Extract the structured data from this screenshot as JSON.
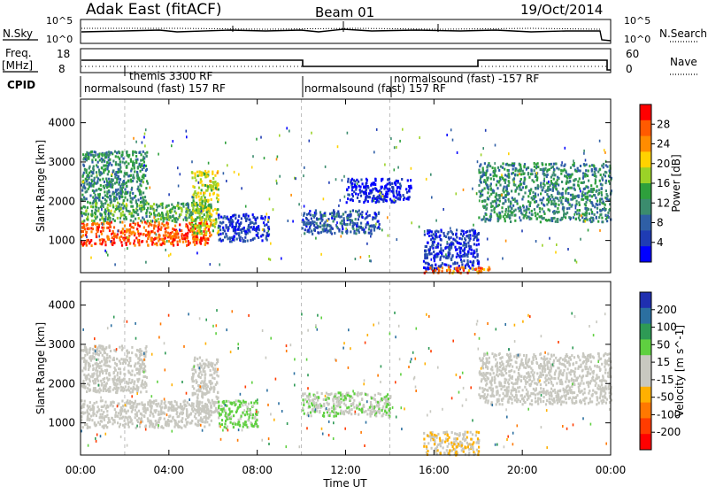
{
  "header": {
    "station": "Adak East (fitACF)",
    "beam": "Beam 01",
    "date": "19/Oct/2014"
  },
  "status_panels": {
    "nsky_label": "N.Sky",
    "nsearch_label": "N.Search",
    "freq_label_1": "Freq.",
    "freq_label_2": "[MHz]",
    "nave_label": "Nave",
    "cpid_label": "CPID",
    "noise_ticks_left": [
      "10^5",
      "10^0"
    ],
    "noise_ticks_right": [
      "10^5",
      "10^0"
    ],
    "freq_ticks": [
      "18",
      "8"
    ],
    "nave_ticks": [
      "60",
      "0"
    ],
    "cpid_segments": [
      {
        "start_h": 0.0,
        "end_h": 10.0,
        "label": "normalsound (fast) 157 RF"
      },
      {
        "start_h": 10.0,
        "end_h": 14.0,
        "label": "normalsound (fast) 157 RF"
      },
      {
        "start_h": 14.0,
        "end_h": 24.0,
        "label": "normalsound (fast) -157 RF"
      }
    ],
    "cpid_extra": {
      "start_h": 2.0,
      "label": "themis 3300 RF"
    }
  },
  "power_colorbar": {
    "label": "Power [dB]",
    "ticks": [
      "28",
      "24",
      "20",
      "16",
      "12",
      "8",
      "4"
    ],
    "colors": [
      "#ff0000",
      "#ff5a00",
      "#ff8c00",
      "#ffd200",
      "#9bd227",
      "#2ea03c",
      "#3b8c6e",
      "#2f5fa6",
      "#1f3cb4",
      "#0000ff"
    ]
  },
  "velocity_colorbar": {
    "label": "Velocity [m s^-1]",
    "ticks": [
      "200",
      "100",
      "50",
      "15",
      "-15",
      "-50",
      "-100",
      "-200"
    ],
    "colors": [
      "#1f2fb0",
      "#2b6fa0",
      "#2e9a55",
      "#5fd040",
      "#c8c8c0",
      "#c8c8c0",
      "#ffb000",
      "#ff7800",
      "#ff3c00",
      "#ff0000"
    ]
  },
  "chart_data": [
    {
      "type": "heatmap",
      "title": "Power",
      "xlabel": "Time UT",
      "ylabel": "Slant Range [km]",
      "xlim": [
        0,
        24
      ],
      "ylim": [
        180,
        4600
      ],
      "x_ticks": [
        "00:00",
        "04:00",
        "08:00",
        "12:00",
        "16:00",
        "20:00",
        "00:00"
      ],
      "y_ticks": [
        "1000",
        "2000",
        "3000",
        "4000"
      ],
      "colorbar_label": "Power [dB]",
      "regions": [
        {
          "t": [
            0.0,
            5.9
          ],
          "range_km": [
            900,
            1500
          ],
          "value_db": 26
        },
        {
          "t": [
            0.0,
            5.9
          ],
          "range_km": [
            1500,
            2000
          ],
          "value_db": 14
        },
        {
          "t": [
            0.0,
            3.0
          ],
          "range_km": [
            2000,
            3300
          ],
          "value_db": 12
        },
        {
          "t": [
            5.0,
            6.2
          ],
          "range_km": [
            1200,
            2800
          ],
          "value_db": 18
        },
        {
          "t": [
            6.2,
            8.5
          ],
          "range_km": [
            1000,
            1700
          ],
          "value_db": 6
        },
        {
          "t": [
            10.0,
            13.5
          ],
          "range_km": [
            1200,
            1800
          ],
          "value_db": 8
        },
        {
          "t": [
            12.0,
            15.0
          ],
          "range_km": [
            2000,
            2600
          ],
          "value_db": 4
        },
        {
          "t": [
            15.5,
            18.0
          ],
          "range_km": [
            300,
            1300
          ],
          "value_db": 6
        },
        {
          "t": [
            15.5,
            18.5
          ],
          "range_km": [
            200,
            350
          ],
          "value_db": 24
        },
        {
          "t": [
            18.0,
            24.0
          ],
          "range_km": [
            1500,
            3000
          ],
          "value_db": 12
        }
      ]
    },
    {
      "type": "heatmap",
      "title": "Velocity",
      "xlabel": "Time UT",
      "ylabel": "Slant Range [km]",
      "xlim": [
        0,
        24
      ],
      "ylim": [
        180,
        4600
      ],
      "x_ticks": [
        "00:00",
        "04:00",
        "08:00",
        "12:00",
        "16:00",
        "20:00",
        "00:00"
      ],
      "y_ticks": [
        "1000",
        "2000",
        "3000",
        "4000"
      ],
      "colorbar_label": "Velocity [m s^-1]",
      "regions": [
        {
          "t": [
            0.0,
            5.9
          ],
          "range_km": [
            900,
            1600
          ],
          "value_ms": 0
        },
        {
          "t": [
            0.0,
            3.0
          ],
          "range_km": [
            1800,
            3000
          ],
          "value_ms": 0
        },
        {
          "t": [
            5.0,
            6.2
          ],
          "range_km": [
            1300,
            2700
          ],
          "value_ms": 0
        },
        {
          "t": [
            6.2,
            8.0
          ],
          "range_km": [
            900,
            1600
          ],
          "value_ms": 60
        },
        {
          "t": [
            10.0,
            14.0
          ],
          "range_km": [
            1200,
            1800
          ],
          "value_ms": 40
        },
        {
          "t": [
            15.5,
            18.0
          ],
          "range_km": [
            200,
            800
          ],
          "value_ms": -40
        },
        {
          "t": [
            18.0,
            24.0
          ],
          "range_km": [
            1500,
            2800
          ],
          "value_ms": 0
        }
      ]
    }
  ]
}
